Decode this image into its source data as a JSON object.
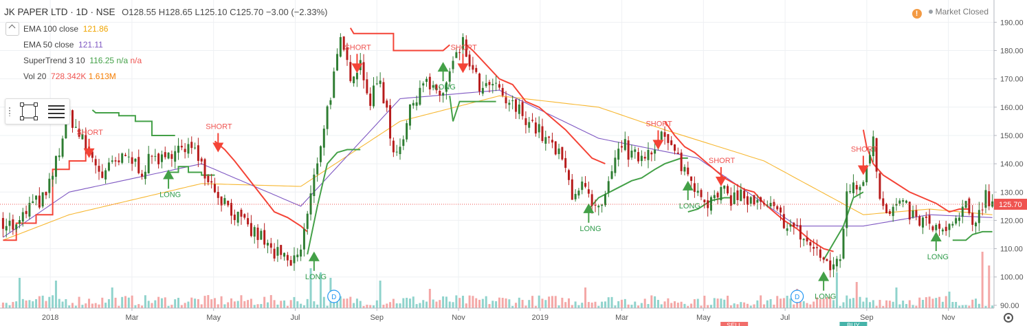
{
  "header": {
    "symbol": "JK PAPER LTD · 1D · NSE",
    "open_label": "O",
    "open": "128.55",
    "high_label": "H",
    "high": "128.65",
    "low_label": "L",
    "low": "125.10",
    "close_label": "C",
    "close": "125.70",
    "change": "−3.00 (−2.33%)"
  },
  "indicators": [
    {
      "name": "EMA 100 close",
      "value": "121.86",
      "color": "#f7b731"
    },
    {
      "name": "EMA 50 close",
      "value": "121.11",
      "color": "#7e57c2"
    },
    {
      "name": "SuperTrend 3 10",
      "value": "116.25",
      "extra": "n/a",
      "extra2": "n/a",
      "color": "#43a047"
    },
    {
      "name": "Vol 20",
      "value": "728.342K",
      "extra": "1.613M",
      "color": "#ef5350"
    }
  ],
  "status": {
    "icon": "warning-icon",
    "text": "Market Closed"
  },
  "colors": {
    "up": "#26a69a",
    "down": "#ef5350",
    "candle_up": "#2e7d32",
    "candle_down": "#b71c1c",
    "supertrend_up": "#43a047",
    "supertrend_down": "#f44336",
    "ema100": "#f7b731",
    "ema50": "#7e57c2",
    "last_price": "#ef5350"
  },
  "chart_data": {
    "type": "candlestick",
    "y_ticks": [
      90,
      100,
      110,
      120,
      130,
      140,
      150,
      160,
      170,
      180,
      190
    ],
    "ylim": [
      89,
      193
    ],
    "x_ticks": [
      "2018",
      "Mar",
      "May",
      "Jul",
      "Sep",
      "Nov",
      "2019",
      "Mar",
      "May",
      "Jul",
      "Sep",
      "Nov"
    ],
    "last_price": 125.7,
    "last_price_label": "125.70",
    "price_path": [
      [
        0,
        120
      ],
      [
        4,
        117
      ],
      [
        8,
        125
      ],
      [
        13,
        128
      ],
      [
        17,
        145
      ],
      [
        20,
        158
      ],
      [
        23,
        150
      ],
      [
        27,
        142
      ],
      [
        30,
        136
      ],
      [
        34,
        140
      ],
      [
        38,
        142
      ],
      [
        42,
        138
      ],
      [
        46,
        143
      ],
      [
        49,
        140
      ],
      [
        52,
        147
      ],
      [
        55,
        143
      ],
      [
        58,
        148
      ],
      [
        60,
        140
      ],
      [
        63,
        133
      ],
      [
        66,
        128
      ],
      [
        69,
        124
      ],
      [
        72,
        119
      ],
      [
        75,
        116
      ],
      [
        78,
        114
      ],
      [
        81,
        109
      ],
      [
        84,
        107
      ],
      [
        87,
        104
      ],
      [
        90,
        110
      ],
      [
        93,
        128
      ],
      [
        96,
        148
      ],
      [
        99,
        165
      ],
      [
        102,
        182
      ],
      [
        105,
        172
      ],
      [
        108,
        176
      ],
      [
        111,
        162
      ],
      [
        114,
        170
      ],
      [
        116,
        158
      ],
      [
        118,
        144
      ],
      [
        121,
        150
      ],
      [
        124,
        162
      ],
      [
        127,
        170
      ],
      [
        130,
        165
      ],
      [
        133,
        165
      ],
      [
        136,
        175
      ],
      [
        139,
        182
      ],
      [
        142,
        172
      ],
      [
        145,
        165
      ],
      [
        148,
        168
      ],
      [
        151,
        163
      ],
      [
        154,
        160
      ],
      [
        157,
        158
      ],
      [
        160,
        154
      ],
      [
        163,
        150
      ],
      [
        166,
        146
      ],
      [
        169,
        141
      ],
      [
        172,
        130
      ],
      [
        175,
        133
      ],
      [
        178,
        124
      ],
      [
        181,
        123
      ],
      [
        184,
        136
      ],
      [
        187,
        148
      ],
      [
        190,
        142
      ],
      [
        193,
        143
      ],
      [
        196,
        146
      ],
      [
        199,
        150
      ],
      [
        202,
        145
      ],
      [
        205,
        140
      ],
      [
        208,
        134
      ],
      [
        211,
        130
      ],
      [
        214,
        126
      ],
      [
        217,
        130
      ],
      [
        220,
        128
      ],
      [
        223,
        129
      ],
      [
        226,
        126
      ],
      [
        229,
        125
      ],
      [
        232,
        124
      ],
      [
        235,
        121
      ],
      [
        238,
        118
      ],
      [
        241,
        115
      ],
      [
        244,
        111
      ],
      [
        247,
        108
      ],
      [
        249,
        103
      ],
      [
        251,
        104
      ],
      [
        253,
        108
      ],
      [
        255,
        128
      ],
      [
        257,
        134
      ],
      [
        259,
        132
      ],
      [
        261,
        140
      ],
      [
        263,
        151
      ],
      [
        265,
        128
      ],
      [
        267,
        121
      ],
      [
        270,
        125
      ],
      [
        273,
        124
      ],
      [
        276,
        120
      ],
      [
        279,
        119
      ],
      [
        282,
        117
      ],
      [
        285,
        115
      ],
      [
        288,
        120
      ],
      [
        291,
        124
      ],
      [
        293,
        118
      ],
      [
        295,
        124
      ],
      [
        297,
        129
      ],
      [
        299,
        126
      ]
    ],
    "vol_spikes": [
      [
        5,
        44
      ],
      [
        16,
        40
      ],
      [
        33,
        30
      ],
      [
        93,
        58
      ],
      [
        96,
        52
      ],
      [
        99,
        44
      ],
      [
        114,
        40
      ],
      [
        129,
        28
      ],
      [
        176,
        30
      ],
      [
        240,
        28
      ],
      [
        252,
        52
      ],
      [
        258,
        38
      ],
      [
        270,
        30
      ],
      [
        286,
        24
      ],
      [
        296,
        82
      ],
      [
        298,
        62
      ]
    ],
    "ema100": [
      [
        0,
        113
      ],
      [
        20,
        122
      ],
      [
        60,
        133
      ],
      [
        90,
        132
      ],
      [
        120,
        155
      ],
      [
        150,
        164
      ],
      [
        180,
        160
      ],
      [
        200,
        152
      ],
      [
        230,
        141
      ],
      [
        260,
        122
      ],
      [
        280,
        124
      ],
      [
        299,
        122
      ]
    ],
    "ema50": [
      [
        0,
        114
      ],
      [
        20,
        130
      ],
      [
        60,
        140
      ],
      [
        90,
        125
      ],
      [
        120,
        163
      ],
      [
        150,
        166
      ],
      [
        180,
        149
      ],
      [
        210,
        142
      ],
      [
        240,
        118
      ],
      [
        260,
        118
      ],
      [
        280,
        122
      ],
      [
        299,
        121
      ]
    ],
    "supertrend": [
      {
        "dir": "down",
        "points": [
          [
            0,
            113
          ],
          [
            4,
            113
          ],
          [
            4,
            119
          ],
          [
            10,
            119
          ],
          [
            10,
            122
          ],
          [
            15,
            122
          ],
          [
            15,
            138
          ],
          [
            20,
            138
          ],
          [
            20,
            141
          ],
          [
            25,
            141
          ],
          [
            25,
            145
          ],
          [
            27,
            145
          ]
        ]
      },
      {
        "dir": "up",
        "points": [
          [
            27,
            159
          ],
          [
            28,
            158
          ],
          [
            35,
            158
          ],
          [
            35,
            157
          ],
          [
            40,
            157
          ],
          [
            40,
            155
          ],
          [
            45,
            155
          ],
          [
            45,
            150
          ],
          [
            52,
            150
          ]
        ]
      },
      {
        "dir": "up2",
        "points": [
          [
            50,
            137
          ],
          [
            53,
            137
          ],
          [
            53,
            139
          ],
          [
            56,
            139
          ],
          [
            56,
            137
          ],
          [
            60,
            137
          ],
          [
            60,
            136
          ],
          [
            64,
            136
          ]
        ]
      },
      {
        "dir": "down",
        "points": [
          [
            64,
            148
          ],
          [
            67,
            145
          ],
          [
            70,
            141
          ],
          [
            74,
            135
          ],
          [
            78,
            129
          ],
          [
            82,
            123
          ],
          [
            86,
            121
          ],
          [
            90,
            118
          ],
          [
            92,
            116
          ]
        ]
      },
      {
        "dir": "up",
        "points": [
          [
            92,
            108
          ],
          [
            95,
            125
          ],
          [
            98,
            140
          ],
          [
            101,
            144
          ],
          [
            104,
            145
          ],
          [
            108,
            145
          ]
        ]
      },
      {
        "dir": "down",
        "points": [
          [
            105,
            188
          ],
          [
            106,
            186
          ],
          [
            118,
            186
          ],
          [
            118,
            180
          ],
          [
            133,
            180
          ],
          [
            135,
            182
          ]
        ]
      },
      {
        "dir": "up",
        "points": [
          [
            135,
            164
          ],
          [
            136,
            155
          ],
          [
            138,
            162
          ],
          [
            145,
            162
          ],
          [
            149,
            162
          ]
        ]
      },
      {
        "dir": "down",
        "points": [
          [
            140,
            182
          ],
          [
            142,
            180
          ],
          [
            146,
            175
          ],
          [
            150,
            170
          ],
          [
            154,
            168
          ],
          [
            158,
            162
          ],
          [
            162,
            160
          ],
          [
            166,
            156
          ],
          [
            170,
            152
          ],
          [
            174,
            147
          ],
          [
            178,
            142
          ],
          [
            180,
            141
          ],
          [
            182,
            140
          ]
        ]
      },
      {
        "dir": "up",
        "points": [
          [
            177,
            124
          ],
          [
            180,
            128
          ],
          [
            185,
            131
          ],
          [
            190,
            134
          ],
          [
            193,
            135
          ],
          [
            197,
            138
          ],
          [
            200,
            140
          ],
          [
            205,
            142
          ],
          [
            207,
            142
          ]
        ]
      },
      {
        "dir": "down",
        "points": [
          [
            200,
            155
          ],
          [
            203,
            150
          ],
          [
            206,
            146
          ],
          [
            209,
            144
          ],
          [
            212,
            141
          ],
          [
            215,
            138
          ],
          [
            218,
            135
          ],
          [
            221,
            133
          ],
          [
            224,
            131
          ],
          [
            227,
            130
          ],
          [
            230,
            126
          ],
          [
            233,
            123
          ],
          [
            236,
            120
          ],
          [
            240,
            117
          ],
          [
            244,
            113
          ],
          [
            248,
            110
          ],
          [
            251,
            109
          ]
        ]
      },
      {
        "dir": "up",
        "points": [
          [
            207,
            123
          ],
          [
            210,
            124
          ],
          [
            214,
            127
          ],
          [
            218,
            128
          ],
          [
            220,
            128
          ]
        ]
      },
      {
        "dir": "up",
        "points": [
          [
            248,
            106
          ],
          [
            251,
            112
          ],
          [
            254,
            118
          ],
          [
            257,
            128
          ],
          [
            260,
            130
          ]
        ]
      },
      {
        "dir": "down",
        "points": [
          [
            260,
            152
          ],
          [
            261,
            146
          ],
          [
            263,
            140
          ],
          [
            266,
            136
          ],
          [
            270,
            133
          ],
          [
            274,
            130
          ],
          [
            278,
            128
          ],
          [
            282,
            126
          ],
          [
            286,
            123
          ],
          [
            289,
            124
          ],
          [
            292,
            124
          ]
        ]
      },
      {
        "dir": "up",
        "points": [
          [
            287,
            113
          ],
          [
            291,
            113
          ],
          [
            293,
            115
          ],
          [
            296,
            116
          ],
          [
            299,
            116
          ]
        ]
      }
    ],
    "signals": [
      {
        "type": "short",
        "label": "SHORT",
        "at": 26,
        "price": 143
      },
      {
        "type": "long",
        "label": "LONG",
        "at": 50,
        "price": 137
      },
      {
        "type": "short",
        "label": "SHORT",
        "at": 65,
        "price": 145
      },
      {
        "type": "long",
        "label": "LONG",
        "at": 94,
        "price": 108
      },
      {
        "type": "short",
        "label": "SHORT",
        "at": 107,
        "price": 173
      },
      {
        "type": "long",
        "label": "LONG",
        "at": 133,
        "price": 175
      },
      {
        "type": "short",
        "label": "SHORT",
        "at": 139,
        "price": 173
      },
      {
        "type": "long",
        "label": "LONG",
        "at": 177,
        "price": 125
      },
      {
        "type": "short",
        "label": "SHORT",
        "at": 198,
        "price": 146
      },
      {
        "type": "long",
        "label": "LONG",
        "at": 207,
        "price": 133
      },
      {
        "type": "short",
        "label": "SHORT",
        "at": 217,
        "price": 133
      },
      {
        "type": "long",
        "label": "LONG",
        "at": 248,
        "price": 101
      },
      {
        "type": "short",
        "label": "SHORT",
        "at": 260,
        "price": 137
      },
      {
        "type": "long",
        "label": "LONG",
        "at": 282,
        "price": 115
      }
    ],
    "dividends": [
      {
        "label": "D",
        "at": 100
      },
      {
        "label": "D",
        "at": 240
      }
    ],
    "bottom_tags": [
      {
        "label": "SELL",
        "at": 221,
        "color": "#ef5350"
      },
      {
        "label": "BUY",
        "at": 257,
        "color": "#26a69a"
      }
    ]
  }
}
